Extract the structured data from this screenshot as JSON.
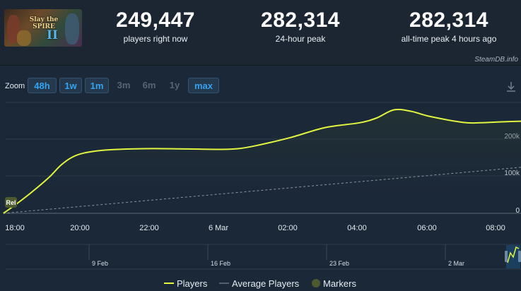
{
  "header": {
    "game_logo": {
      "line1": "Slay the",
      "line2": "SPIRE",
      "numeral": "II"
    },
    "stats": [
      {
        "value": "249,447",
        "label": "players right now"
      },
      {
        "value": "282,314",
        "label": "24-hour peak"
      },
      {
        "value": "282,314",
        "label": "all-time peak 4 hours ago"
      }
    ],
    "source": "SteamDB.info"
  },
  "zoom": {
    "label": "Zoom",
    "options": [
      {
        "label": "48h",
        "enabled": true
      },
      {
        "label": "1w",
        "enabled": true
      },
      {
        "label": "1m",
        "enabled": true
      },
      {
        "label": "3m",
        "enabled": false
      },
      {
        "label": "6m",
        "enabled": false
      },
      {
        "label": "1y",
        "enabled": false
      },
      {
        "label": "max",
        "enabled": true
      }
    ]
  },
  "chart_data": {
    "type": "line",
    "x_ticks": [
      "18:00",
      "20:00",
      "22:00",
      "6 Mar",
      "02:00",
      "04:00",
      "06:00",
      "08:00"
    ],
    "y_ticks": [
      "0",
      "100k",
      "200k"
    ],
    "ylim": [
      0,
      300000
    ],
    "series": [
      {
        "name": "Players",
        "color": "#e2f43f",
        "points": [
          [
            "17:40",
            0
          ],
          [
            "18:00",
            22000
          ],
          [
            "18:30",
            58000
          ],
          [
            "19:00",
            98000
          ],
          [
            "19:20",
            130000
          ],
          [
            "19:40",
            152000
          ],
          [
            "20:00",
            163000
          ],
          [
            "20:30",
            170000
          ],
          [
            "21:00",
            173000
          ],
          [
            "22:00",
            175000
          ],
          [
            "23:00",
            174000
          ],
          [
            "00:00",
            173000
          ],
          [
            "00:30",
            175000
          ],
          [
            "01:00",
            183000
          ],
          [
            "02:00",
            205000
          ],
          [
            "03:00",
            232000
          ],
          [
            "04:00",
            245000
          ],
          [
            "04:30",
            258000
          ],
          [
            "05:00",
            280000
          ],
          [
            "05:30",
            276000
          ],
          [
            "06:00",
            263000
          ],
          [
            "07:00",
            246000
          ],
          [
            "07:30",
            245000
          ],
          [
            "08:00",
            247000
          ],
          [
            "08:45",
            249447
          ]
        ]
      },
      {
        "name": "Average Players",
        "color": "#8c959f",
        "points": [
          [
            "17:40",
            0
          ],
          [
            "08:45",
            125000
          ]
        ]
      }
    ],
    "marker_label": "Rel",
    "legend": [
      "Players",
      "Average Players",
      "Markers"
    ],
    "navigator_ticks": [
      "9 Feb",
      "16 Feb",
      "23 Feb",
      "2 Mar"
    ]
  },
  "colors": {
    "background": "#1b2838",
    "players_line": "#e2f43f",
    "accent": "#35a3f0",
    "marker": "#4d5a2e"
  }
}
